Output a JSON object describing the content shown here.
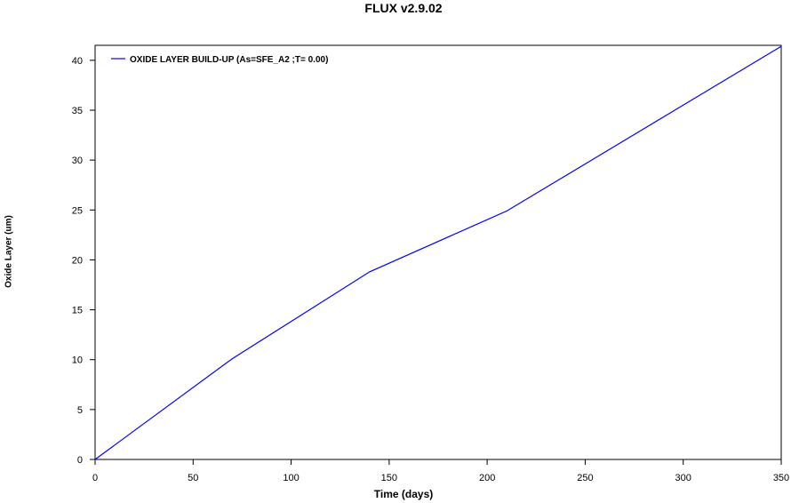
{
  "chart_data": {
    "type": "line",
    "title": "FLUX v2.9.02",
    "xlabel": "Time (days)",
    "ylabel": "Oxide Layer (um)",
    "xlim": [
      0,
      350
    ],
    "ylim": [
      0,
      41.5
    ],
    "xticks": [
      0,
      50,
      100,
      150,
      200,
      250,
      300,
      350
    ],
    "yticks": [
      0,
      5,
      10,
      15,
      20,
      25,
      30,
      35,
      40
    ],
    "grid": false,
    "legend_position": "top-left",
    "series": [
      {
        "name": "OXIDE LAYER BUILD-UP (As=SFE_A2 ;T=  0.00)",
        "color": "#0000ff",
        "x": [
          0,
          70,
          140,
          210,
          350
        ],
        "y": [
          0,
          10.1,
          18.8,
          24.9,
          41.4
        ]
      }
    ]
  }
}
